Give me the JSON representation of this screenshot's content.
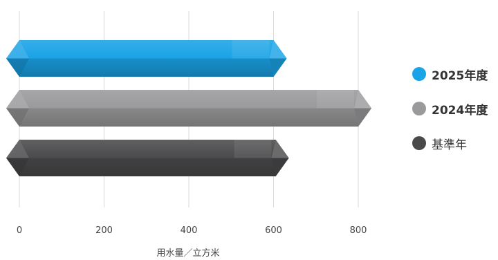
{
  "chart_data": {
    "type": "bar",
    "orientation": "horizontal",
    "xlabel": "用水量／立方米",
    "xlim": [
      0,
      800
    ],
    "xticks": [
      0,
      200,
      400,
      600,
      800
    ],
    "grid": true,
    "legend_position": "right",
    "series": [
      {
        "name": "2025年度",
        "value": 600,
        "color": "#1aa3e6"
      },
      {
        "name": "2024年度",
        "value": 800,
        "color": "#9a9a9c"
      },
      {
        "name": "基準年",
        "value": 605,
        "color": "#4a4a4c"
      }
    ]
  }
}
